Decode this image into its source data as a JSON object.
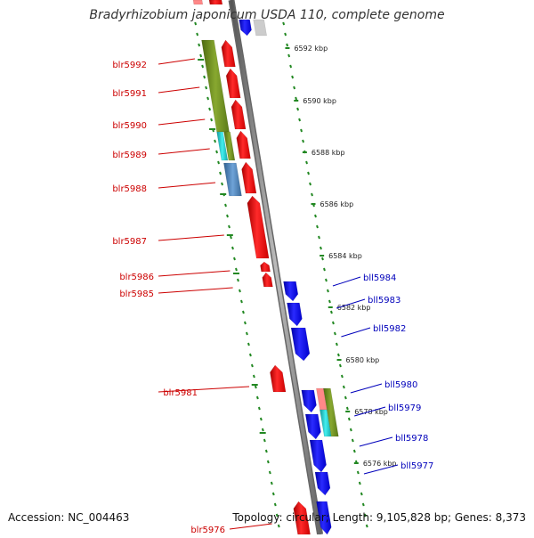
{
  "title": "Bradyrhizobium japonicum USDA 110, complete genome",
  "footer": {
    "accession": "Accession: NC_004463",
    "info": "Topology: circular; Length: 9,105,828 bp; Genes: 8,373"
  },
  "scale_ticks": [
    "6592 kbp",
    "6590 kbp",
    "6588 kbp",
    "6586 kbp",
    "6584 kbp",
    "6582 kbp",
    "6580 kbp",
    "6578 kbp",
    "6576 kbp"
  ],
  "left_genes": [
    "blr5992",
    "blr5991",
    "blr5990",
    "blr5989",
    "blr5988",
    "blr5987",
    "blr5986",
    "blr5985",
    "blr5981",
    "blr5976"
  ],
  "right_genes": [
    "bll5984",
    "bll5983",
    "bll5982",
    "bll5980",
    "bll5979",
    "bll5978",
    "bll5977"
  ],
  "colors": {
    "forward_strand": "#ff0000",
    "reverse_strand": "#0000ee",
    "feature_olive": "#6e8f1e",
    "feature_cyan": "#22cccc",
    "feature_steel": "#4f86b8",
    "feature_pink": "#ff8888",
    "axis": "#888888",
    "ruler_dots": "#228822",
    "left_label": "#cc0000",
    "right_label": "#0000bb"
  }
}
